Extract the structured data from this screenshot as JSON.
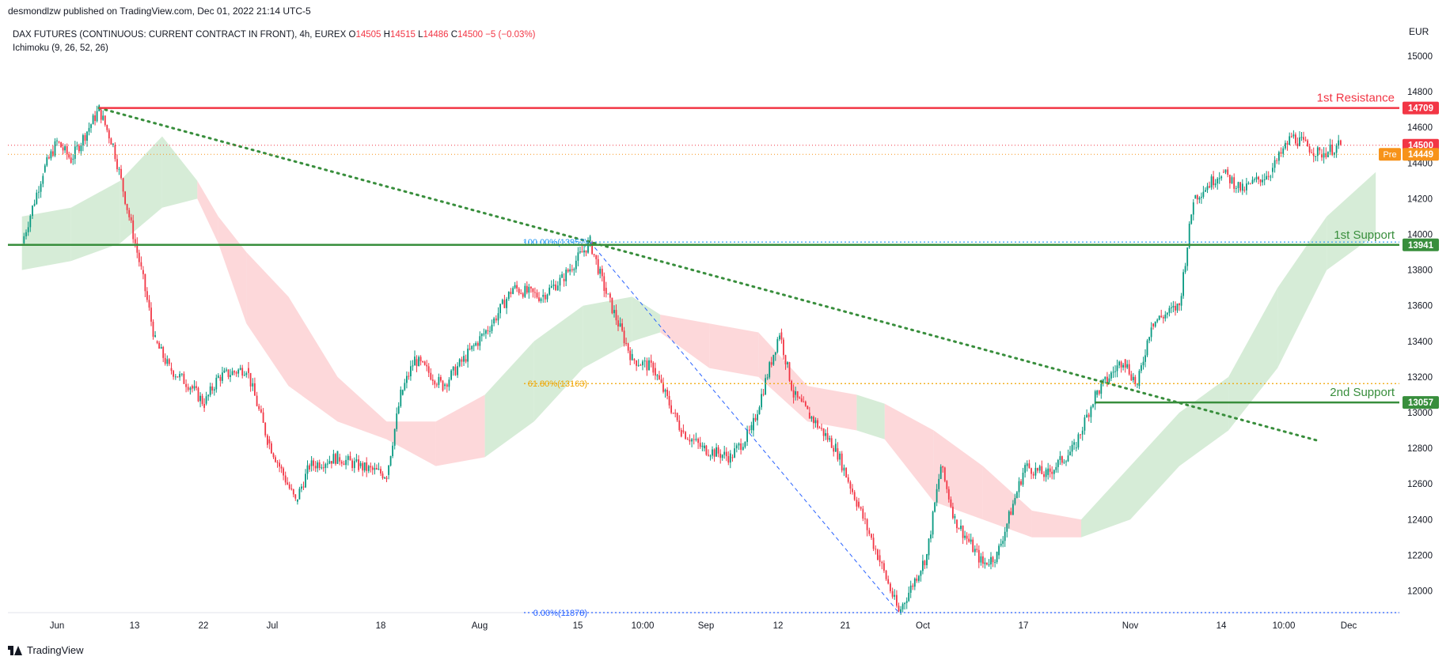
{
  "header": {
    "published": "desmondlzw published on TradingView.com, Dec 01, 2022 21:14 UTC-5"
  },
  "legend": {
    "symbol": "DAX FUTURES (CONTINUOUS: CURRENT CONTRACT IN FRONT), 4h, EUREX",
    "o_label": "O",
    "o": "14505",
    "h_label": "H",
    "h": "14515",
    "l_label": "L",
    "l": "14486",
    "c_label": "C",
    "c": "14500",
    "change": "−5 (−0.03%)",
    "indicator": "Ichimoku (9, 26, 52, 26)"
  },
  "currency": "EUR",
  "brand": "TradingView",
  "chart_data": {
    "type": "candlestick",
    "y_axis": {
      "range": [
        11900,
        15200
      ],
      "ticks": [
        12000,
        12200,
        12400,
        12600,
        12800,
        13000,
        13200,
        13400,
        13600,
        13800,
        14000,
        14200,
        14400,
        14600,
        14800,
        15000
      ]
    },
    "x_axis": {
      "ticks": [
        "Jun",
        "13",
        "22",
        "Jul",
        "18",
        "Aug",
        "15",
        "10:00",
        "Sep",
        "12",
        "21",
        "Oct",
        "17",
        "Nov",
        "14",
        "10:00",
        "Dec"
      ]
    },
    "levels": [
      {
        "label": "1st Resistance",
        "value": 14709,
        "tag": "14709",
        "color": "#f23645"
      },
      {
        "label": "1st Support",
        "value": 13941,
        "tag": "13941",
        "color": "#388e3c"
      },
      {
        "label": "2nd Support",
        "value": 13057,
        "tag": "13057",
        "color": "#388e3c"
      }
    ],
    "last_price": {
      "value": 14500,
      "tag": "14500",
      "color": "#f23645"
    },
    "pre_market": {
      "label": "Pre",
      "value": 14449,
      "tag": "14449",
      "color": "#f7931a"
    },
    "fibonacci": [
      {
        "label": "100.00%(13957)",
        "value": 13957
      },
      {
        "label": "61.80%(13163)",
        "value": 13163
      },
      {
        "label": "0.00%(11878)",
        "value": 11878
      }
    ],
    "trendline": {
      "from": {
        "x": "Jun 07",
        "y": 14709
      },
      "to": {
        "x": "Nov 28",
        "y": 12840
      }
    },
    "price_path": [
      [
        "May 27",
        13950
      ],
      [
        "May 30",
        14350
      ],
      [
        "Jun 01",
        14520
      ],
      [
        "Jun 03",
        14420
      ],
      [
        "Jun 07",
        14700
      ],
      [
        "Jun 09",
        14500
      ],
      [
        "Jun 13",
        13800
      ],
      [
        "Jun 15",
        13400
      ],
      [
        "Jun 17",
        13250
      ],
      [
        "Jun 20",
        13150
      ],
      [
        "Jun 22",
        13050
      ],
      [
        "Jun 24",
        13200
      ],
      [
        "Jun 28",
        13250
      ],
      [
        "Jul 01",
        12850
      ],
      [
        "Jul 05",
        12500
      ],
      [
        "Jul 07",
        12700
      ],
      [
        "Jul 11",
        12750
      ],
      [
        "Jul 14",
        12700
      ],
      [
        "Jul 18",
        12650
      ],
      [
        "Jul 20",
        13100
      ],
      [
        "Jul 22",
        13300
      ],
      [
        "Jul 26",
        13150
      ],
      [
        "Jul 29",
        13300
      ],
      [
        "Aug 02",
        13500
      ],
      [
        "Aug 05",
        13700
      ],
      [
        "Aug 09",
        13650
      ],
      [
        "Aug 12",
        13750
      ],
      [
        "Aug 16",
        13957
      ],
      [
        "Aug 18",
        13700
      ],
      [
        "Aug 22",
        13300
      ],
      [
        "Aug 25",
        13250
      ],
      [
        "Aug 29",
        12900
      ],
      [
        "Sep 01",
        12800
      ],
      [
        "Sep 05",
        12750
      ],
      [
        "Sep 08",
        12900
      ],
      [
        "Sep 12",
        13450
      ],
      [
        "Sep 14",
        13100
      ],
      [
        "Sep 16",
        13000
      ],
      [
        "Sep 20",
        12800
      ],
      [
        "Sep 23",
        12500
      ],
      [
        "Sep 26",
        12200
      ],
      [
        "Sep 29",
        11878
      ],
      [
        "Oct 03",
        12200
      ],
      [
        "Oct 05",
        12700
      ],
      [
        "Oct 07",
        12400
      ],
      [
        "Oct 11",
        12150
      ],
      [
        "Oct 13",
        12200
      ],
      [
        "Oct 17",
        12700
      ],
      [
        "Oct 20",
        12650
      ],
      [
        "Oct 24",
        12800
      ],
      [
        "Oct 27",
        13100
      ],
      [
        "Oct 31",
        13300
      ],
      [
        "Nov 02",
        13150
      ],
      [
        "Nov 04",
        13500
      ],
      [
        "Nov 08",
        13600
      ],
      [
        "Nov 10",
        14200
      ],
      [
        "Nov 14",
        14350
      ],
      [
        "Nov 17",
        14250
      ],
      [
        "Nov 21",
        14350
      ],
      [
        "Nov 24",
        14550
      ],
      [
        "Nov 28",
        14450
      ],
      [
        "Dec 01",
        14500
      ]
    ],
    "ichimoku_cloud": [
      [
        "May 27",
        14100,
        13800,
        "bull"
      ],
      [
        "Jun 03",
        14150,
        13850,
        "bull"
      ],
      [
        "Jun 10",
        14300,
        13950,
        "bull"
      ],
      [
        "Jun 16",
        14550,
        14150,
        "bull"
      ],
      [
        "Jun 21",
        14300,
        14200,
        "bear"
      ],
      [
        "Jun 24",
        14100,
        13950,
        "bear"
      ],
      [
        "Jun 28",
        13900,
        13500,
        "bear"
      ],
      [
        "Jul 04",
        13650,
        13150,
        "bear"
      ],
      [
        "Jul 11",
        13200,
        12950,
        "bear"
      ],
      [
        "Jul 18",
        12950,
        12850,
        "bear"
      ],
      [
        "Jul 25",
        12950,
        12700,
        "bear"
      ],
      [
        "Aug 01",
        13100,
        12750,
        "bull"
      ],
      [
        "Aug 08",
        13400,
        12950,
        "bull"
      ],
      [
        "Aug 15",
        13600,
        13250,
        "bull"
      ],
      [
        "Aug 22",
        13650,
        13400,
        "bull"
      ],
      [
        "Aug 26",
        13550,
        13450,
        "bear"
      ],
      [
        "Sep 02",
        13500,
        13250,
        "bear"
      ],
      [
        "Sep 09",
        13450,
        13200,
        "bear"
      ],
      [
        "Sep 16",
        13150,
        12950,
        "bear"
      ],
      [
        "Sep 23",
        13100,
        12900,
        "bull"
      ],
      [
        "Sep 27",
        13050,
        12850,
        "bear"
      ],
      [
        "Oct 04",
        12900,
        12500,
        "bear"
      ],
      [
        "Oct 11",
        12700,
        12400,
        "bear"
      ],
      [
        "Oct 18",
        12450,
        12300,
        "bear"
      ],
      [
        "Oct 25",
        12400,
        12300,
        "bull"
      ],
      [
        "Nov 01",
        12700,
        12400,
        "bull"
      ],
      [
        "Nov 08",
        13000,
        12700,
        "bull"
      ],
      [
        "Nov 15",
        13200,
        12900,
        "bull"
      ],
      [
        "Nov 22",
        13700,
        13250,
        "bull"
      ],
      [
        "Nov 29",
        14100,
        13800,
        "bull"
      ],
      [
        "Dec 06",
        14350,
        14000,
        "bull"
      ]
    ]
  }
}
